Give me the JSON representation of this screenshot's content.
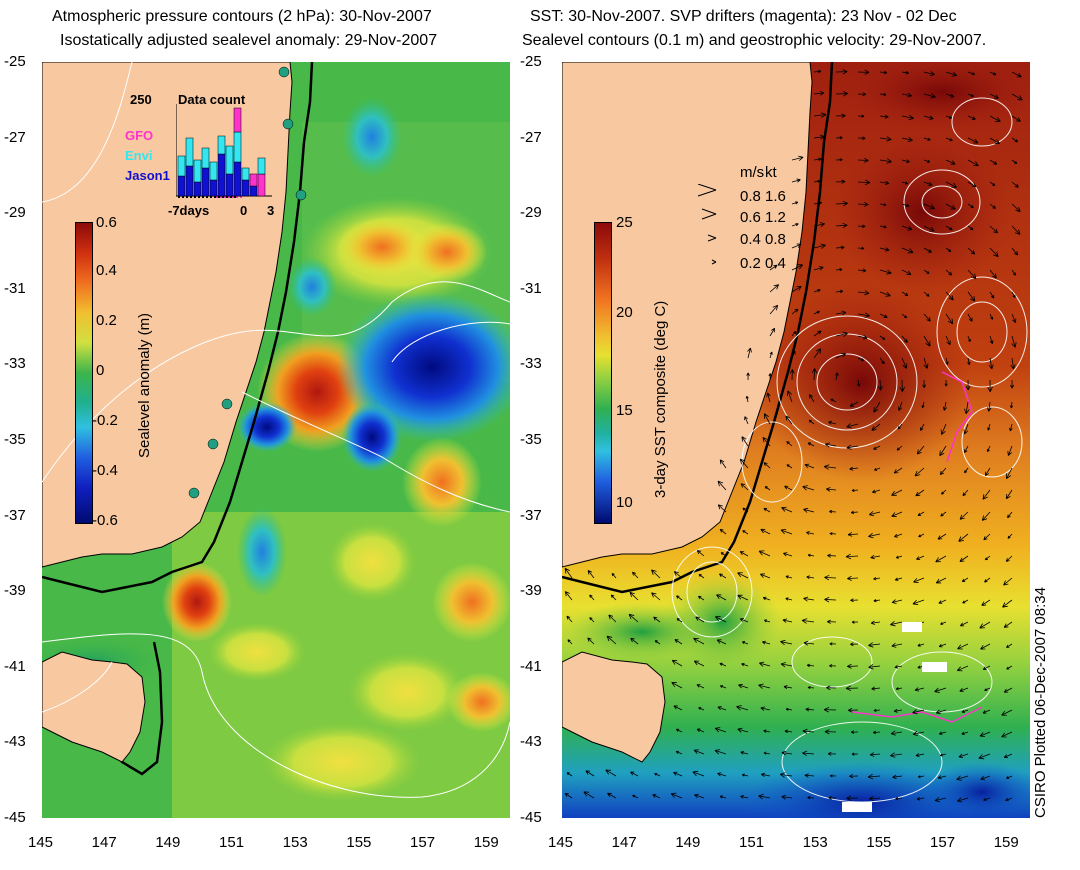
{
  "left_panel": {
    "title_line1": "Atmospheric pressure contours (2 hPa): 30-Nov-2007",
    "title_line2": "Isostatically adjusted sealevel anomaly: 29-Nov-2007",
    "colorbar": {
      "title": "Sealevel anomaly (m)",
      "ticks": [
        "0.6",
        "0.4",
        "0.2",
        "0",
        "-0.2",
        "-0.4",
        "-0.6"
      ]
    },
    "data_count": {
      "max_label": "250",
      "title": "Data count",
      "series": [
        "GFO",
        "Envi",
        "Jason1"
      ],
      "series_colors": [
        "#ff33cc",
        "#33e6f0",
        "#1010d0"
      ],
      "x_labels": [
        "-7days",
        "0",
        "3"
      ]
    }
  },
  "right_panel": {
    "title_line1": "SST: 30-Nov-2007. SVP drifters (magenta): 23 Nov - 02 Dec",
    "title_line2": "Sealevel contours (0.1 m) and geostrophic velocity: 29-Nov-2007.",
    "colorbar": {
      "title": "3-day SST composite (deg C)",
      "ticks": [
        "25",
        "20",
        "15",
        "10"
      ]
    },
    "speed_legend": {
      "header_ms": "m/s",
      "header_kt": "kt",
      "rows": [
        {
          "ms": "0.8",
          "kt": "1.6"
        },
        {
          "ms": "0.6",
          "kt": "1.2"
        },
        {
          "ms": "0.4",
          "kt": "0.8"
        },
        {
          "ms": "0.2",
          "kt": "0.4"
        }
      ]
    },
    "credit": "CSIRO Plotted 06-Dec-2007 08:34"
  },
  "axes": {
    "y_ticks": [
      "-25",
      "-27",
      "-29",
      "-31",
      "-33",
      "-35",
      "-37",
      "-39",
      "-41",
      "-43",
      "-45"
    ],
    "x_ticks": [
      "145",
      "147",
      "149",
      "151",
      "153",
      "155",
      "157",
      "159"
    ]
  },
  "colors": {
    "land": "#f8c8a0",
    "sea_green": "#3cb44b",
    "sst_hot": "#8c1a0a"
  }
}
